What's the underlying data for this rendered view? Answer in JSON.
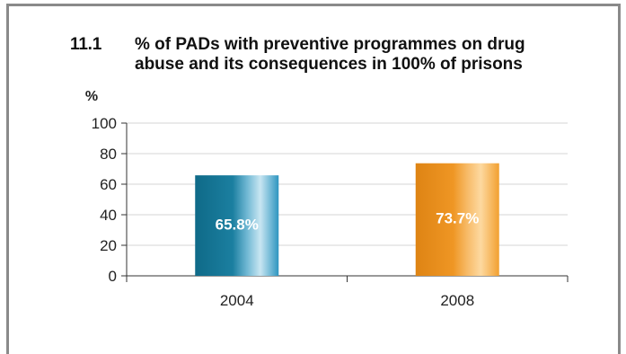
{
  "chart_data": {
    "type": "bar",
    "title_number": "11.1",
    "title": "% of PADs with preventive programmes on drug abuse and its consequences in 100% of prisons",
    "ylabel": "%",
    "xlabel": "",
    "ylim": [
      0,
      100
    ],
    "yticks": [
      0,
      20,
      40,
      60,
      80,
      100
    ],
    "grid": true,
    "categories": [
      "2004",
      "2008"
    ],
    "values": [
      65.8,
      73.7
    ],
    "data_labels": [
      "65.8%",
      "73.7%"
    ],
    "colors": [
      "#1b7fa0",
      "#f09a2a"
    ]
  }
}
